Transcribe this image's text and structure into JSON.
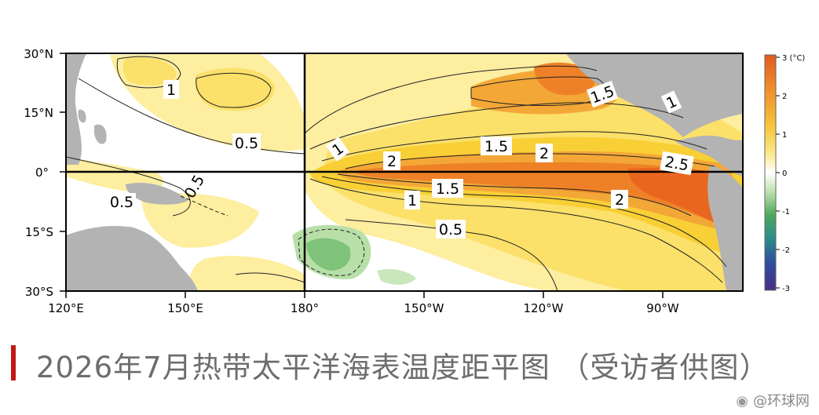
{
  "map": {
    "latitude_labels": [
      "30°N",
      "15°N",
      "0°",
      "15°S",
      "30°S"
    ],
    "longitude_labels": [
      "120°E",
      "150°E",
      "180°",
      "150°W",
      "120°W",
      "90°W"
    ],
    "contour_labels": [
      "1",
      "0.5",
      "0.5",
      "0.5",
      "1",
      "1",
      "1.5",
      "1.5",
      "2",
      "2",
      "2",
      "1.5",
      "2.5",
      "1"
    ],
    "colorbar": {
      "unit_label": "3 (°C)",
      "ticks": [
        "2",
        "1",
        "0",
        "-1",
        "-2",
        "-3"
      ]
    },
    "colors": {
      "land": "#b3b3b3",
      "warm_light": "#fdf0a8",
      "warm_mid": "#f8cf35",
      "warm_strong": "#f29f34",
      "warm_max": "#ea6a22",
      "cool": "#a8d89a",
      "cool_dark": "#5fae61"
    }
  },
  "caption": {
    "title": "2026年7月热带太平洋海表温度距平图 （受访者供图）"
  },
  "watermark": {
    "icon": "weibo-icon",
    "text": "@环球网"
  }
}
